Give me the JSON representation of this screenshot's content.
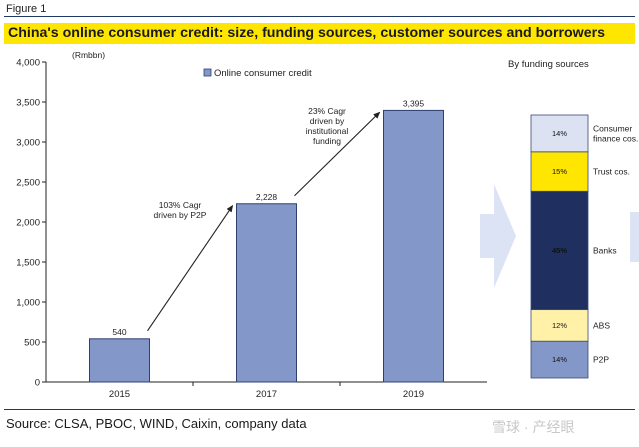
{
  "figure_label": "Figure 1",
  "title": "China's online consumer credit: size, funding sources, customer sources and borrowers",
  "source": "Source: CLSA, PBOC, WIND, Caixin, company data",
  "watermark": "雪球 · 产经眼",
  "chart_data": [
    {
      "type": "bar",
      "unit_label": "(Rmbbn)",
      "categories": [
        "2015",
        "2017",
        "2019"
      ],
      "series": [
        {
          "name": "Online consumer credit",
          "values": [
            540,
            2228,
            3395
          ],
          "data_labels": [
            "540",
            "2,228",
            "3,395"
          ]
        }
      ],
      "ylim": [
        0,
        4000
      ],
      "yticks": [
        0,
        500,
        1000,
        1500,
        2000,
        2500,
        3000,
        3500,
        4000
      ],
      "ytick_labels": [
        "0",
        "500",
        "1,000",
        "1,500",
        "2,000",
        "2,500",
        "3,000",
        "3,500",
        "4,000"
      ],
      "legend_position": "top-center",
      "grid": false,
      "colors": {
        "bar": "#8497c9",
        "bar_edge": "#2f3f6f"
      },
      "annotations": [
        {
          "lines": [
            "103% Cagr",
            "driven by P2P"
          ]
        },
        {
          "lines": [
            "23% Cagr",
            "driven by",
            "institutional",
            "funding"
          ]
        }
      ]
    },
    {
      "type": "bar",
      "stacked": true,
      "title": "By funding sources",
      "segments": [
        {
          "name": "P2P",
          "value": 14,
          "label": "14%",
          "color": "#8497c9"
        },
        {
          "name": "ABS",
          "value": 12,
          "label": "12%",
          "color": "#fff2a8"
        },
        {
          "name": "Banks",
          "value": 45,
          "label": "45%",
          "color": "#1f2f5f"
        },
        {
          "name": "Trust cos.",
          "value": 15,
          "label": "15%",
          "color": "#ffe600"
        },
        {
          "name": "Consumer finance cos.",
          "value": 14,
          "label": "14%",
          "color": "#dce2f2",
          "name_lines": [
            "Consumer",
            "finance cos."
          ]
        }
      ],
      "label_colors": {
        "dark_bg": "#ffffff",
        "light_bg": "#111111"
      }
    }
  ],
  "decor": {
    "arrow_color": "#dce3f4",
    "text_color": "#222222"
  }
}
